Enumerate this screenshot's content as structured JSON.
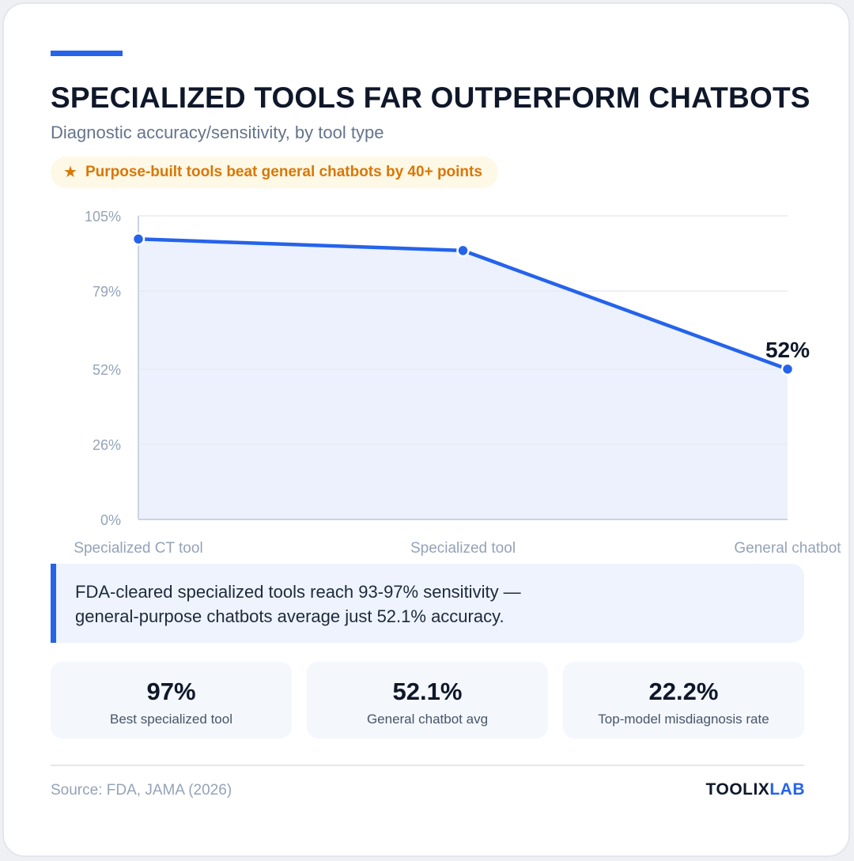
{
  "header": {
    "title": "SPECIALIZED TOOLS FAR OUTPERFORM CHATBOTS",
    "subtitle": "Diagnostic accuracy/sensitivity, by tool type",
    "callout": "Purpose-built tools beat general chatbots by 40+ points",
    "callout_icon": "star-icon"
  },
  "chart_data": {
    "type": "area",
    "categories": [
      "Specialized CT tool",
      "Specialized tool",
      "General chatbot"
    ],
    "series": [
      {
        "values": [
          97,
          93,
          52
        ]
      }
    ],
    "ylim": [
      0,
      105
    ],
    "yticks": [
      0,
      26,
      52,
      79,
      105
    ],
    "ytick_labels": [
      "0%",
      "26%",
      "52%",
      "79%",
      "105%"
    ],
    "point_label": "52%",
    "point_label_index": 2,
    "grid": true,
    "line_color": "#2563eb",
    "fill_color": "#ecf1fd"
  },
  "insight": {
    "line1": "FDA-cleared specialized tools reach 93-97% sensitivity —",
    "line2": "general-purpose chatbots average just 52.1% accuracy."
  },
  "stats": [
    {
      "value": "97%",
      "label": "Best specialized tool"
    },
    {
      "value": "52.1%",
      "label": "General chatbot avg"
    },
    {
      "value": "22.2%",
      "label": "Top-model misdiagnosis rate"
    }
  ],
  "footer": {
    "source": "Source: FDA, JAMA (2026)",
    "brand_part1": "TOOLIX",
    "brand_part2": "LAB"
  }
}
